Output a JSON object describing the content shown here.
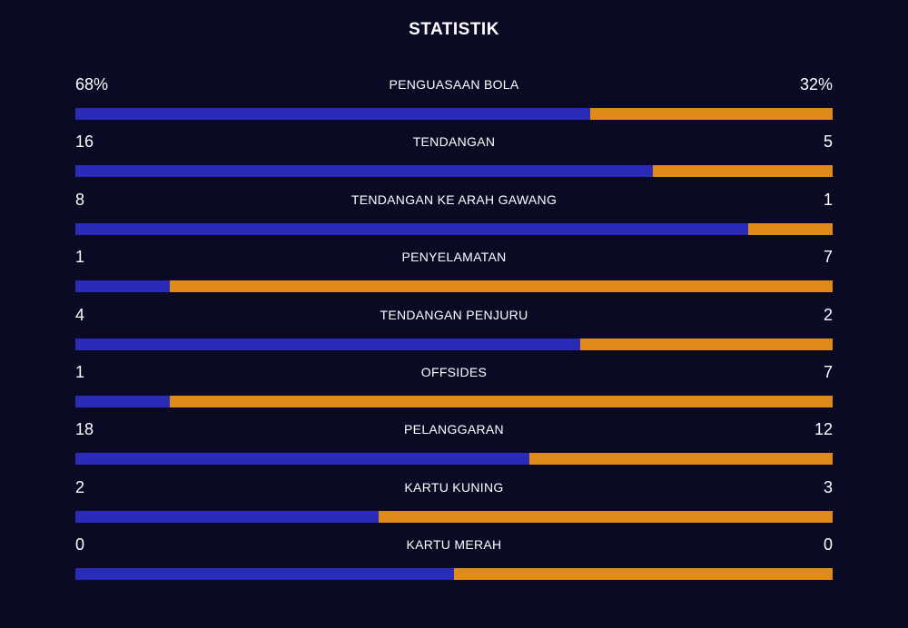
{
  "title": "STATISTIK",
  "colors": {
    "background": "#0a0a24",
    "home": "#2a2cb8",
    "away": "#e08a1a",
    "text": "#ffffff"
  },
  "stats": [
    {
      "label": "PENGUASAAN BOLA",
      "home": "68%",
      "away": "32%",
      "home_share": 0.68
    },
    {
      "label": "TENDANGAN",
      "home": "16",
      "away": "5",
      "home_share": 0.762
    },
    {
      "label": "TENDANGAN KE ARAH GAWANG",
      "home": "8",
      "away": "1",
      "home_share": 0.889
    },
    {
      "label": "PENYELAMATAN",
      "home": "1",
      "away": "7",
      "home_share": 0.125
    },
    {
      "label": "TENDANGAN PENJURU",
      "home": "4",
      "away": "2",
      "home_share": 0.667
    },
    {
      "label": "OFFSIDES",
      "home": "1",
      "away": "7",
      "home_share": 0.125
    },
    {
      "label": "PELANGGARAN",
      "home": "18",
      "away": "12",
      "home_share": 0.6
    },
    {
      "label": "KARTU KUNING",
      "home": "2",
      "away": "3",
      "home_share": 0.4
    },
    {
      "label": "KARTU MERAH",
      "home": "0",
      "away": "0",
      "home_share": 0.5
    }
  ]
}
